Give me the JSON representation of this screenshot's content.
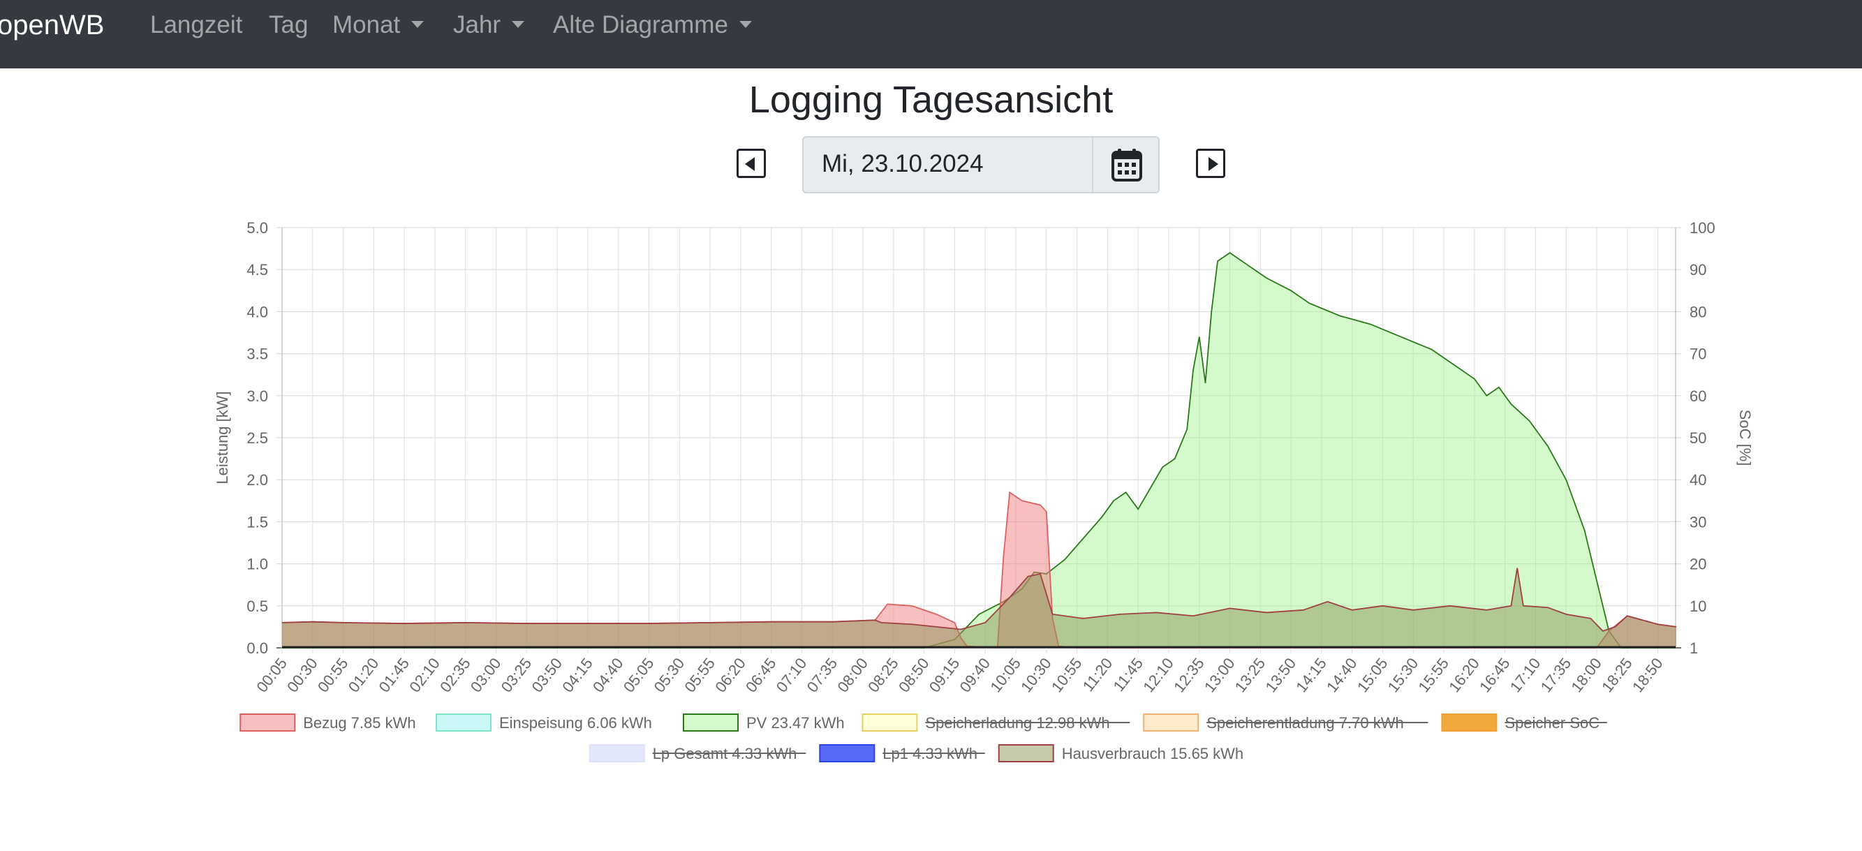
{
  "navbar": {
    "brand": "openWB",
    "items": [
      {
        "label": "Langzeit",
        "dropdown": false
      },
      {
        "label": "Tag",
        "dropdown": false
      },
      {
        "label": "Monat",
        "dropdown": true
      },
      {
        "label": "Jahr",
        "dropdown": true
      },
      {
        "label": "Alte Diagramme",
        "dropdown": true
      }
    ]
  },
  "header": {
    "title": "Logging Tagesansicht",
    "date_value": "Mi, 23.10.2024"
  },
  "icons": {
    "prev": "caret-left-square-icon",
    "next": "caret-right-square-icon",
    "calendar": "calendar-icon"
  },
  "chart_data": {
    "type": "area",
    "ylabel": "Leistung [kW]",
    "y2label": "SoC [%]",
    "ylim": [
      0,
      5
    ],
    "y2lim": [
      0,
      100
    ],
    "y_ticks": [
      "0.0",
      "0.5",
      "1.0",
      "1.5",
      "2.0",
      "2.5",
      "3.0",
      "3.5",
      "4.0",
      "4.5",
      "5.0"
    ],
    "y2_ticks": [
      "1",
      "10",
      "20",
      "30",
      "40",
      "50",
      "60",
      "70",
      "80",
      "90",
      "100"
    ],
    "x_ticks": [
      "00:05",
      "00:30",
      "00:55",
      "01:20",
      "01:45",
      "02:10",
      "02:35",
      "03:00",
      "03:25",
      "03:50",
      "04:15",
      "04:40",
      "05:05",
      "05:30",
      "05:55",
      "06:20",
      "06:45",
      "07:10",
      "07:35",
      "08:00",
      "08:25",
      "08:50",
      "09:15",
      "09:40",
      "10:05",
      "10:30",
      "10:55",
      "11:20",
      "11:45",
      "12:10",
      "12:35",
      "13:00",
      "13:25",
      "13:50",
      "14:15",
      "14:40",
      "15:05",
      "15:30",
      "15:55",
      "16:20",
      "16:45",
      "17:10",
      "17:35",
      "18:00",
      "18:25",
      "18:50"
    ],
    "grid": true,
    "legend_position": "bottom",
    "series": [
      {
        "name": "Bezug 7.85 kWh",
        "fill": "rgba(240,128,128,0.5)",
        "stroke": "#e06060",
        "hidden": false,
        "points": [
          [
            "00:05",
            0.3
          ],
          [
            "00:30",
            0.31
          ],
          [
            "00:55",
            0.3
          ],
          [
            "01:45",
            0.29
          ],
          [
            "02:35",
            0.3
          ],
          [
            "03:25",
            0.29
          ],
          [
            "04:15",
            0.29
          ],
          [
            "05:05",
            0.29
          ],
          [
            "05:55",
            0.3
          ],
          [
            "06:45",
            0.31
          ],
          [
            "07:35",
            0.31
          ],
          [
            "08:10",
            0.33
          ],
          [
            "08:20",
            0.52
          ],
          [
            "08:40",
            0.5
          ],
          [
            "09:00",
            0.4
          ],
          [
            "09:15",
            0.3
          ],
          [
            "09:20",
            0.12
          ],
          [
            "09:25",
            0.02
          ],
          [
            "09:50",
            0.0
          ],
          [
            "09:55",
            1.1
          ],
          [
            "10:00",
            1.85
          ],
          [
            "10:10",
            1.75
          ],
          [
            "10:25",
            1.7
          ],
          [
            "10:30",
            1.62
          ],
          [
            "10:35",
            0.35
          ],
          [
            "10:40",
            0.02
          ],
          [
            "10:55",
            0.0
          ],
          [
            "18:00",
            0.0
          ],
          [
            "18:10",
            0.2
          ],
          [
            "18:25",
            0.38
          ],
          [
            "18:50",
            0.28
          ],
          [
            "19:05",
            0.25
          ]
        ]
      },
      {
        "name": "Einspeisung 6.06 kWh",
        "fill": "rgba(150,240,240,0.5)",
        "stroke": "#7fe3c8",
        "hidden": false,
        "points": [
          [
            "00:05",
            0.0
          ],
          [
            "19:05",
            0.0
          ]
        ]
      },
      {
        "name": "PV 23.47 kWh",
        "fill": "rgba(160,245,140,0.45)",
        "stroke": "#2a7a1a",
        "hidden": false,
        "points": [
          [
            "00:05",
            0.0
          ],
          [
            "08:50",
            0.0
          ],
          [
            "09:15",
            0.1
          ],
          [
            "09:35",
            0.4
          ],
          [
            "09:55",
            0.55
          ],
          [
            "10:10",
            0.7
          ],
          [
            "10:20",
            0.9
          ],
          [
            "10:30",
            0.88
          ],
          [
            "10:45",
            1.05
          ],
          [
            "11:00",
            1.3
          ],
          [
            "11:15",
            1.55
          ],
          [
            "11:25",
            1.75
          ],
          [
            "11:35",
            1.85
          ],
          [
            "11:45",
            1.65
          ],
          [
            "11:55",
            1.9
          ],
          [
            "12:05",
            2.15
          ],
          [
            "12:15",
            2.25
          ],
          [
            "12:25",
            2.6
          ],
          [
            "12:30",
            3.3
          ],
          [
            "12:35",
            3.7
          ],
          [
            "12:40",
            3.15
          ],
          [
            "12:45",
            4.0
          ],
          [
            "12:50",
            4.6
          ],
          [
            "13:00",
            4.7
          ],
          [
            "13:15",
            4.55
          ],
          [
            "13:30",
            4.4
          ],
          [
            "13:50",
            4.25
          ],
          [
            "14:05",
            4.1
          ],
          [
            "14:30",
            3.95
          ],
          [
            "14:55",
            3.85
          ],
          [
            "15:20",
            3.7
          ],
          [
            "15:45",
            3.55
          ],
          [
            "16:05",
            3.35
          ],
          [
            "16:20",
            3.2
          ],
          [
            "16:30",
            3.0
          ],
          [
            "16:40",
            3.1
          ],
          [
            "16:50",
            2.9
          ],
          [
            "17:05",
            2.7
          ],
          [
            "17:20",
            2.4
          ],
          [
            "17:35",
            2.0
          ],
          [
            "17:50",
            1.4
          ],
          [
            "18:00",
            0.8
          ],
          [
            "18:10",
            0.2
          ],
          [
            "18:20",
            0.0
          ],
          [
            "19:05",
            0.0
          ]
        ]
      },
      {
        "name": "Speicherladung 12.98 kWh",
        "fill": "rgba(255,255,190,0.6)",
        "stroke": "#e8d060",
        "hidden": true,
        "points": []
      },
      {
        "name": "Speicherentladung 7.70 kWh",
        "fill": "rgba(255,220,170,0.6)",
        "stroke": "#f0b070",
        "hidden": true,
        "points": []
      },
      {
        "name": "Speicher SoC",
        "fill": "rgba(240,160,40,0.9)",
        "stroke": "#f0a030",
        "hidden": true,
        "points": []
      },
      {
        "name": "Lp Gesamt 4.33 kWh",
        "fill": "rgba(220,225,250,0.8)",
        "stroke": "#dde0fa",
        "hidden": true,
        "points": []
      },
      {
        "name": "Lp1 4.33 kWh",
        "fill": "rgba(70,90,250,0.9)",
        "stroke": "#2a44e6",
        "hidden": true,
        "points": []
      },
      {
        "name": "Hausverbrauch 15.65 kWh",
        "fill": "rgba(140,150,90,0.5)",
        "stroke": "#a04040",
        "hidden": false,
        "points": [
          [
            "00:05",
            0.3
          ],
          [
            "00:30",
            0.31
          ],
          [
            "00:55",
            0.3
          ],
          [
            "01:45",
            0.29
          ],
          [
            "02:35",
            0.3
          ],
          [
            "03:25",
            0.29
          ],
          [
            "04:15",
            0.29
          ],
          [
            "05:05",
            0.29
          ],
          [
            "05:55",
            0.3
          ],
          [
            "06:45",
            0.31
          ],
          [
            "07:35",
            0.31
          ],
          [
            "08:10",
            0.33
          ],
          [
            "08:15",
            0.3
          ],
          [
            "08:40",
            0.28
          ],
          [
            "09:00",
            0.25
          ],
          [
            "09:20",
            0.22
          ],
          [
            "09:40",
            0.3
          ],
          [
            "10:00",
            0.6
          ],
          [
            "10:15",
            0.85
          ],
          [
            "10:25",
            0.88
          ],
          [
            "10:35",
            0.4
          ],
          [
            "11:00",
            0.35
          ],
          [
            "11:30",
            0.4
          ],
          [
            "12:00",
            0.42
          ],
          [
            "12:30",
            0.38
          ],
          [
            "13:00",
            0.47
          ],
          [
            "13:30",
            0.42
          ],
          [
            "14:00",
            0.45
          ],
          [
            "14:20",
            0.55
          ],
          [
            "14:40",
            0.45
          ],
          [
            "15:05",
            0.5
          ],
          [
            "15:30",
            0.45
          ],
          [
            "16:00",
            0.5
          ],
          [
            "16:30",
            0.45
          ],
          [
            "16:50",
            0.5
          ],
          [
            "16:55",
            0.95
          ],
          [
            "17:00",
            0.5
          ],
          [
            "17:20",
            0.48
          ],
          [
            "17:35",
            0.4
          ],
          [
            "17:55",
            0.35
          ],
          [
            "18:05",
            0.2
          ],
          [
            "18:15",
            0.25
          ],
          [
            "18:25",
            0.38
          ],
          [
            "18:50",
            0.28
          ],
          [
            "19:05",
            0.25
          ]
        ]
      }
    ]
  }
}
